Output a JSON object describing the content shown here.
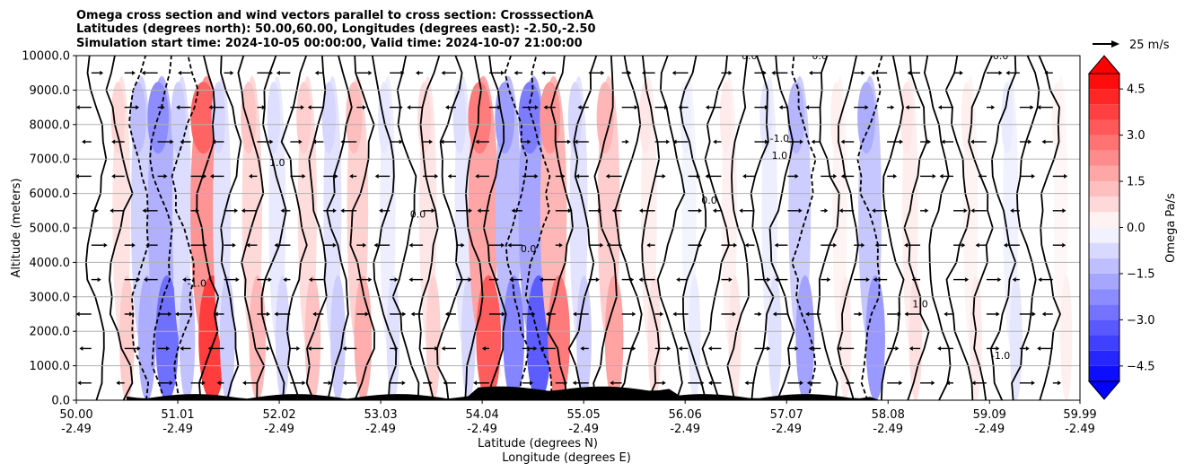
{
  "chart_data": {
    "type": "heatmap",
    "title_lines": [
      "Omega cross section and wind vectors parallel to cross section: CrosssectionA",
      "Latitudes (degrees north): 50.00,60.00, Longitudes (degrees east): -2.50,-2.50",
      "Simulation start time: 2024-10-05 00:00:00, Valid time: 2024-10-07 21:00:00"
    ],
    "ylabel": "Altitude (meters)",
    "xlabel_lines": [
      "Latitude (degrees N)",
      "Longitude (degrees E)"
    ],
    "ylim": [
      0,
      10000
    ],
    "yticks": [
      0,
      1000,
      2000,
      3000,
      4000,
      5000,
      6000,
      7000,
      8000,
      9000,
      10000
    ],
    "ytick_labels": [
      "0.0",
      "1000.0",
      "2000.0",
      "3000.0",
      "4000.0",
      "5000.0",
      "6000.0",
      "7000.0",
      "8000.0",
      "9000.0",
      "10000.0"
    ],
    "xlim": [
      50.0,
      59.99
    ],
    "xticks": [
      50.0,
      51.01,
      52.02,
      53.03,
      54.04,
      55.05,
      56.06,
      57.07,
      58.08,
      59.09,
      59.99
    ],
    "xtick_lat_labels": [
      "50.00",
      "51.01",
      "52.02",
      "53.03",
      "54.04",
      "55.05",
      "56.06",
      "57.07",
      "58.08",
      "59.09",
      "59.99"
    ],
    "xtick_lon_labels": [
      "-2.49",
      "-2.49",
      "-2.49",
      "-2.49",
      "-2.49",
      "-2.49",
      "-2.49",
      "-2.49",
      "-2.49",
      "-2.49",
      "-2.49"
    ],
    "grid": true,
    "colorbar": {
      "label": "Omega Pa/s",
      "vmin": -5.0,
      "vmax": 5.0,
      "ticks": [
        -4.5,
        -3.0,
        -1.5,
        0.0,
        1.5,
        3.0,
        4.5
      ],
      "tick_labels": [
        "−4.5",
        "−3.0",
        "−1.5",
        "0.0",
        "1.5",
        "3.0",
        "4.5"
      ],
      "extend": "both",
      "colormap": "bwr"
    },
    "vector_key": {
      "label": "25 m/s",
      "speed": 25
    },
    "contour_labels": [
      {
        "text": "-1.0",
        "lat": 51.2,
        "alt": 3300
      },
      {
        "text": "0.0",
        "lat": 53.4,
        "alt": 5300
      },
      {
        "text": "1.0",
        "lat": 58.4,
        "alt": 2700
      },
      {
        "text": "-1.0",
        "lat": 59.2,
        "alt": 1200
      },
      {
        "text": "0.0",
        "lat": 56.7,
        "alt": 9900
      },
      {
        "text": "0.0",
        "lat": 57.4,
        "alt": 9900
      },
      {
        "text": "0.0",
        "lat": 59.2,
        "alt": 9900
      },
      {
        "text": "-1.0",
        "lat": 57.0,
        "alt": 7500
      },
      {
        "text": "1.0",
        "lat": 57.0,
        "alt": 7000
      },
      {
        "text": "0.0",
        "lat": 54.5,
        "alt": 4300
      },
      {
        "text": "1.0",
        "lat": 52.0,
        "alt": 6800
      },
      {
        "text": "0.0",
        "lat": 56.3,
        "alt": 5700
      }
    ],
    "field_series": [
      {
        "name": "omega column",
        "lat": 50.45,
        "omega": 1.0
      },
      {
        "name": "omega column",
        "lat": 50.65,
        "omega": -1.6
      },
      {
        "name": "omega column",
        "lat": 50.85,
        "omega": -2.8
      },
      {
        "name": "omega column",
        "lat": 51.05,
        "omega": -1.2
      },
      {
        "name": "omega column",
        "lat": 51.3,
        "omega": 3.8
      },
      {
        "name": "omega column",
        "lat": 51.45,
        "omega": -1.0
      },
      {
        "name": "omega column",
        "lat": 51.75,
        "omega": 1.4
      },
      {
        "name": "omega column",
        "lat": 52.0,
        "omega": -0.8
      },
      {
        "name": "omega column",
        "lat": 52.3,
        "omega": 1.2
      },
      {
        "name": "omega column",
        "lat": 52.55,
        "omega": -1.0
      },
      {
        "name": "omega column",
        "lat": 52.8,
        "omega": 1.6
      },
      {
        "name": "omega column",
        "lat": 53.1,
        "omega": -0.6
      },
      {
        "name": "omega column",
        "lat": 53.5,
        "omega": 0.9
      },
      {
        "name": "omega column",
        "lat": 53.85,
        "omega": -0.8
      },
      {
        "name": "omega column",
        "lat": 54.05,
        "omega": 3.2
      },
      {
        "name": "omega column",
        "lat": 54.3,
        "omega": -2.4
      },
      {
        "name": "omega column",
        "lat": 54.55,
        "omega": -3.2
      },
      {
        "name": "omega column",
        "lat": 54.75,
        "omega": 2.6
      },
      {
        "name": "omega column",
        "lat": 55.0,
        "omega": -1.0
      },
      {
        "name": "omega column",
        "lat": 55.3,
        "omega": 1.8
      },
      {
        "name": "omega column",
        "lat": 55.7,
        "omega": 0.6
      },
      {
        "name": "omega column",
        "lat": 56.1,
        "omega": -0.4
      },
      {
        "name": "omega column",
        "lat": 56.5,
        "omega": 0.5
      },
      {
        "name": "omega column",
        "lat": 56.9,
        "omega": -0.6
      },
      {
        "name": "omega column",
        "lat": 57.2,
        "omega": -1.8
      },
      {
        "name": "omega column",
        "lat": 57.6,
        "omega": 0.4
      },
      {
        "name": "omega column",
        "lat": 57.9,
        "omega": -2.0
      },
      {
        "name": "omega column",
        "lat": 58.3,
        "omega": 0.6
      },
      {
        "name": "omega column",
        "lat": 58.9,
        "omega": 0.4
      },
      {
        "name": "omega column",
        "lat": 59.3,
        "omega": -0.5
      },
      {
        "name": "omega column",
        "lat": 59.8,
        "omega": 0.3
      }
    ]
  }
}
